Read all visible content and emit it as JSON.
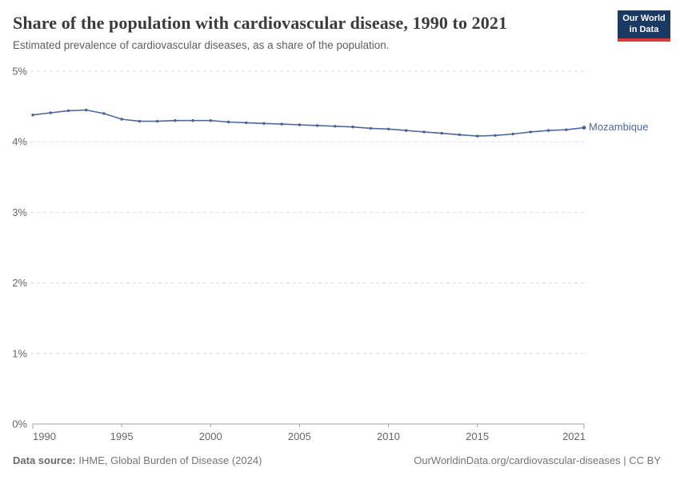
{
  "header": {
    "title": "Share of the population with cardiovascular disease, 1990 to 2021",
    "subtitle": "Estimated prevalence of cardiovascular diseases, as a share of the population.",
    "logo_line1": "Our World",
    "logo_line2": "in Data"
  },
  "colors": {
    "line": "#4c6a9c",
    "point": "#44619b",
    "grid": "#dcdcdc",
    "axis": "#a1a1a1",
    "logo_bg": "#1a3a63",
    "logo_accent": "#d93a3b"
  },
  "chart_data": {
    "type": "line",
    "title": "Share of the population with cardiovascular disease, 1990 to 2021",
    "subtitle": "Estimated prevalence of cardiovascular diseases, as a share of the population.",
    "xlabel": "",
    "ylabel": "",
    "x": [
      1990,
      1991,
      1992,
      1993,
      1994,
      1995,
      1996,
      1997,
      1998,
      1999,
      2000,
      2001,
      2002,
      2003,
      2004,
      2005,
      2006,
      2007,
      2008,
      2009,
      2010,
      2011,
      2012,
      2013,
      2014,
      2015,
      2016,
      2017,
      2018,
      2019,
      2020,
      2021
    ],
    "series": [
      {
        "name": "Mozambique",
        "values": [
          4.38,
          4.41,
          4.44,
          4.45,
          4.4,
          4.32,
          4.29,
          4.29,
          4.3,
          4.3,
          4.3,
          4.28,
          4.27,
          4.26,
          4.25,
          4.24,
          4.23,
          4.22,
          4.21,
          4.19,
          4.18,
          4.16,
          4.14,
          4.12,
          4.1,
          4.08,
          4.09,
          4.11,
          4.14,
          4.16,
          4.17,
          4.2
        ]
      }
    ],
    "x_range": [
      1990,
      2021
    ],
    "y_range": [
      0,
      5
    ],
    "xticks": [
      1990,
      1995,
      2000,
      2005,
      2010,
      2015,
      2021
    ],
    "yticks": [
      {
        "value": 0,
        "label": "0%"
      },
      {
        "value": 1,
        "label": "1%"
      },
      {
        "value": 2,
        "label": "2%"
      },
      {
        "value": 3,
        "label": "3%"
      },
      {
        "value": 4,
        "label": "4%"
      },
      {
        "value": 5,
        "label": "5%"
      }
    ],
    "grid": "horizontal-dashed",
    "legend": "end-of-line-label"
  },
  "footer": {
    "source_label": "Data source:",
    "source_text": " IHME, Global Burden of Disease (2024)",
    "license_text": "OurWorldinData.org/cardiovascular-diseases | CC BY"
  }
}
